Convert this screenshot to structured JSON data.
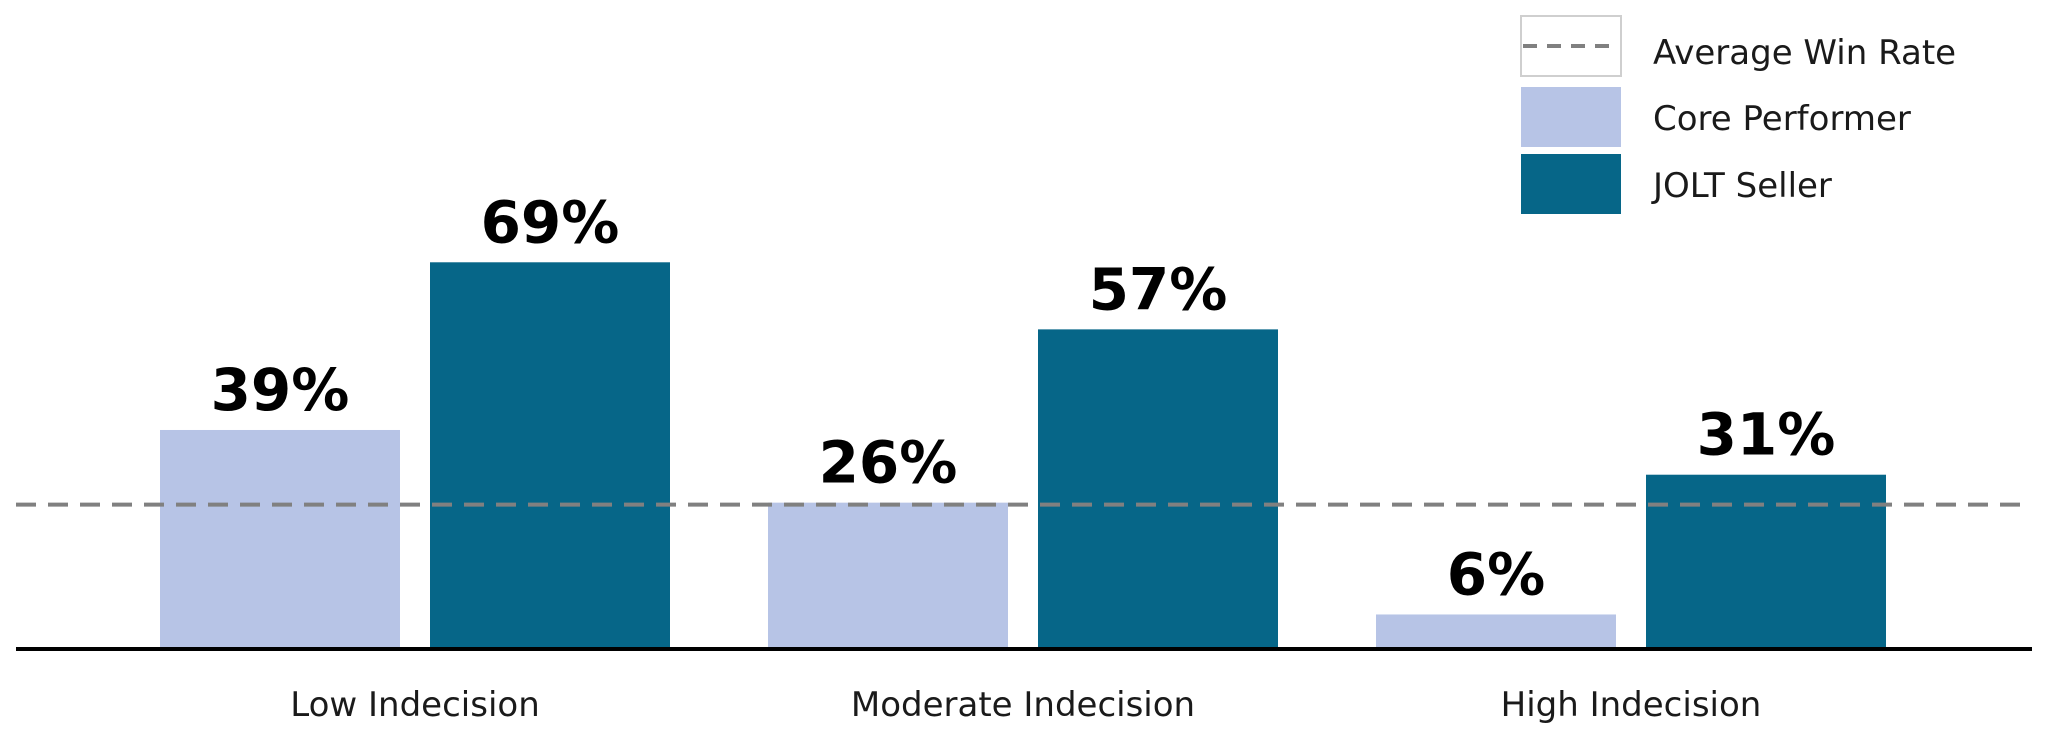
{
  "chart_data": {
    "type": "bar",
    "categories": [
      "Low Indecision",
      "Moderate Indecision",
      "High Indecision"
    ],
    "series": [
      {
        "name": "Core Performer",
        "values": [
          39,
          26,
          6
        ],
        "labels": [
          "39%",
          "26%",
          "6%"
        ],
        "color": "#b7c4e6"
      },
      {
        "name": "JOLT Seller",
        "values": [
          69,
          57,
          31
        ],
        "labels": [
          "69%",
          "57%",
          "31%"
        ],
        "color": "#066688"
      }
    ],
    "reference_line": {
      "name": "Average Win Rate",
      "value": 26,
      "color": "#808080",
      "style": "dashed"
    },
    "title": "",
    "xlabel": "",
    "ylabel": "",
    "ylim": [
      0,
      100
    ],
    "grid": false,
    "legend": "top-right",
    "axis_color": "#000000"
  }
}
